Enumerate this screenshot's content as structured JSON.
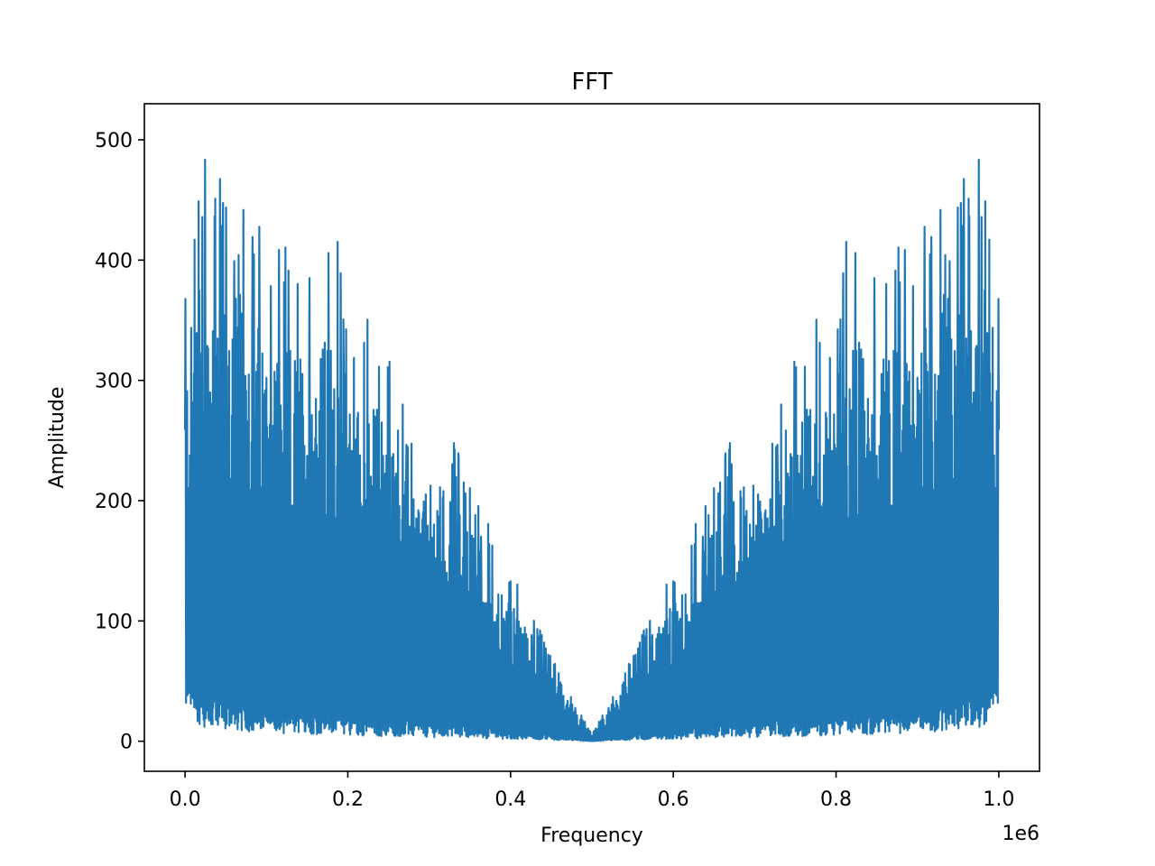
{
  "chart_data": {
    "type": "line",
    "title": "FFT",
    "xlabel": "Frequency",
    "ylabel": "Amplitude",
    "x_offset_text": "1e6",
    "xlim": [
      -50000,
      1050000
    ],
    "ylim": [
      -25,
      530
    ],
    "x_ticks": [
      0,
      200000,
      400000,
      600000,
      800000,
      1000000
    ],
    "x_tick_labels": [
      "0.0",
      "0.2",
      "0.4",
      "0.6",
      "0.8",
      "1.0"
    ],
    "y_ticks": [
      0,
      100,
      200,
      300,
      400,
      500
    ],
    "y_tick_labels": [
      "0",
      "100",
      "200",
      "300",
      "400",
      "500"
    ],
    "grid": false,
    "series": [
      {
        "color": "#1f77b4",
        "x": [
          0,
          20000,
          50000,
          75000,
          95000,
          130000,
          150000,
          185000,
          210000,
          240000,
          280000,
          320000,
          350000,
          390000,
          420000,
          450000,
          470000,
          490000,
          500000,
          510000,
          530000,
          550000,
          580000,
          610000,
          650000,
          680000,
          720000,
          760000,
          790000,
          815000,
          850000,
          870000,
          905000,
          925000,
          950000,
          980000,
          1000000
        ],
        "upper": [
          385,
          505,
          462,
          468,
          425,
          408,
          408,
          424,
          354,
          350,
          258,
          272,
          222,
          152,
          122,
          72,
          42,
          18,
          6,
          18,
          42,
          72,
          122,
          152,
          222,
          272,
          258,
          350,
          354,
          424,
          408,
          408,
          425,
          468,
          462,
          505,
          385
        ],
        "lower": [
          30,
          12,
          10,
          8,
          8,
          6,
          6,
          5,
          5,
          4,
          4,
          3,
          3,
          2,
          2,
          1,
          1,
          0,
          0,
          0,
          1,
          1,
          2,
          2,
          3,
          3,
          4,
          4,
          5,
          5,
          6,
          6,
          8,
          8,
          10,
          12,
          30
        ]
      }
    ]
  }
}
